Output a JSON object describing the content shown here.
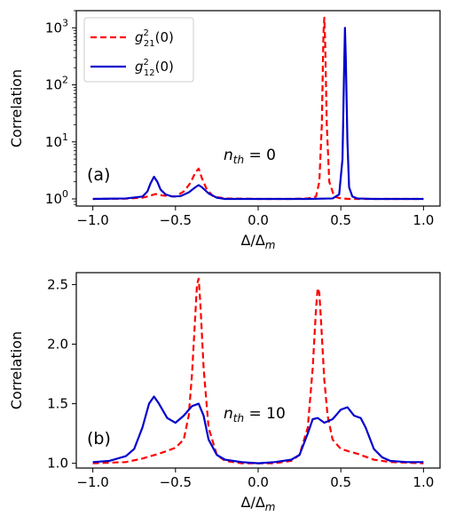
{
  "chart_data": [
    {
      "panel_tag": "(a)",
      "type": "line",
      "yscale": "log",
      "ylabel": "Correlation",
      "xlabel": "Δ/Δ_m",
      "xlim": [
        -1.1,
        1.1
      ],
      "ylim": [
        0.75,
        2000
      ],
      "xticks": [
        "-1.0",
        "-0.5",
        "0.0",
        "0.5",
        "1.0"
      ],
      "yticks": [
        "10^0",
        "10^1",
        "10^2",
        "10^3"
      ],
      "annotation": "n_th = 0",
      "legend_position": "top-left",
      "series": [
        {
          "name": "g^2_21(0)",
          "color": "#ff0000",
          "style": "dashed",
          "x": [
            -1.0,
            -0.8,
            -0.7,
            -0.66,
            -0.62,
            -0.58,
            -0.5,
            -0.45,
            -0.41,
            -0.38,
            -0.36,
            -0.34,
            -0.31,
            -0.27,
            -0.2,
            0.0,
            0.2,
            0.3,
            0.35,
            0.37,
            0.385,
            0.395,
            0.4,
            0.405,
            0.415,
            0.43,
            0.46,
            0.5,
            0.55,
            0.6,
            1.0
          ],
          "y": [
            1.0,
            1.01,
            1.05,
            1.12,
            1.22,
            1.15,
            1.1,
            1.35,
            1.9,
            2.9,
            3.4,
            2.3,
            1.45,
            1.1,
            1.02,
            1.0,
            1.0,
            1.02,
            1.1,
            2.0,
            20,
            800,
            1500,
            600,
            20,
            2.0,
            1.1,
            1.02,
            1.0,
            1.0,
            1.0
          ]
        },
        {
          "name": "g^2_12(0)",
          "color": "#0000cc",
          "style": "solid",
          "x": [
            -1.0,
            -0.8,
            -0.7,
            -0.67,
            -0.65,
            -0.63,
            -0.61,
            -0.59,
            -0.56,
            -0.52,
            -0.47,
            -0.42,
            -0.38,
            -0.36,
            -0.34,
            -0.3,
            -0.25,
            -0.2,
            0.0,
            0.3,
            0.45,
            0.49,
            0.51,
            0.52,
            0.525,
            0.53,
            0.54,
            0.55,
            0.57,
            0.6,
            0.7,
            1.0
          ],
          "y": [
            1.0,
            1.02,
            1.1,
            1.35,
            1.9,
            2.45,
            2.0,
            1.45,
            1.2,
            1.1,
            1.12,
            1.3,
            1.6,
            1.75,
            1.6,
            1.25,
            1.05,
            1.0,
            1.0,
            1.0,
            1.02,
            1.2,
            5,
            200,
            1000,
            300,
            10,
            1.6,
            1.1,
            1.02,
            1.0,
            1.0
          ]
        }
      ]
    },
    {
      "panel_tag": "(b)",
      "type": "line",
      "yscale": "linear",
      "ylabel": "Correlation",
      "xlabel": "Δ/Δ_m",
      "xlim": [
        -1.1,
        1.1
      ],
      "ylim": [
        0.96,
        2.6
      ],
      "xticks": [
        "-1.0",
        "-0.5",
        "0.0",
        "0.5",
        "1.0"
      ],
      "yticks": [
        "1.0",
        "1.5",
        "2.0",
        "2.5"
      ],
      "annotation": "n_th = 10",
      "series": [
        {
          "name": "g^2_21(0)",
          "color": "#ff0000",
          "style": "dashed",
          "x": [
            -1.0,
            -0.8,
            -0.7,
            -0.6,
            -0.5,
            -0.45,
            -0.42,
            -0.4,
            -0.38,
            -0.37,
            -0.36,
            -0.35,
            -0.33,
            -0.3,
            -0.25,
            -0.2,
            -0.1,
            0.0,
            0.1,
            0.2,
            0.25,
            0.3,
            0.33,
            0.35,
            0.36,
            0.37,
            0.38,
            0.4,
            0.42,
            0.45,
            0.5,
            0.6,
            0.7,
            0.8,
            1.0
          ],
          "y": [
            1.0,
            1.01,
            1.04,
            1.08,
            1.13,
            1.2,
            1.4,
            1.75,
            2.25,
            2.5,
            2.55,
            2.35,
            1.8,
            1.3,
            1.07,
            1.02,
            1.0,
            1.0,
            1.0,
            1.02,
            1.07,
            1.3,
            1.8,
            2.3,
            2.47,
            2.43,
            2.2,
            1.7,
            1.4,
            1.2,
            1.12,
            1.08,
            1.03,
            1.01,
            1.0
          ]
        },
        {
          "name": "g^2_12(0)",
          "color": "#0000cc",
          "style": "solid",
          "x": [
            -1.0,
            -0.9,
            -0.8,
            -0.75,
            -0.7,
            -0.66,
            -0.63,
            -0.6,
            -0.55,
            -0.5,
            -0.45,
            -0.4,
            -0.36,
            -0.33,
            -0.3,
            -0.25,
            -0.2,
            -0.1,
            0.0,
            0.1,
            0.2,
            0.25,
            0.3,
            0.33,
            0.36,
            0.4,
            0.45,
            0.5,
            0.54,
            0.58,
            0.62,
            0.65,
            0.7,
            0.75,
            0.8,
            0.9,
            1.0
          ],
          "y": [
            1.01,
            1.02,
            1.06,
            1.12,
            1.3,
            1.5,
            1.56,
            1.5,
            1.38,
            1.34,
            1.4,
            1.48,
            1.5,
            1.4,
            1.2,
            1.07,
            1.03,
            1.01,
            1.0,
            1.01,
            1.03,
            1.07,
            1.25,
            1.37,
            1.38,
            1.34,
            1.37,
            1.45,
            1.47,
            1.4,
            1.38,
            1.3,
            1.12,
            1.05,
            1.02,
            1.01,
            1.01
          ]
        }
      ]
    }
  ]
}
